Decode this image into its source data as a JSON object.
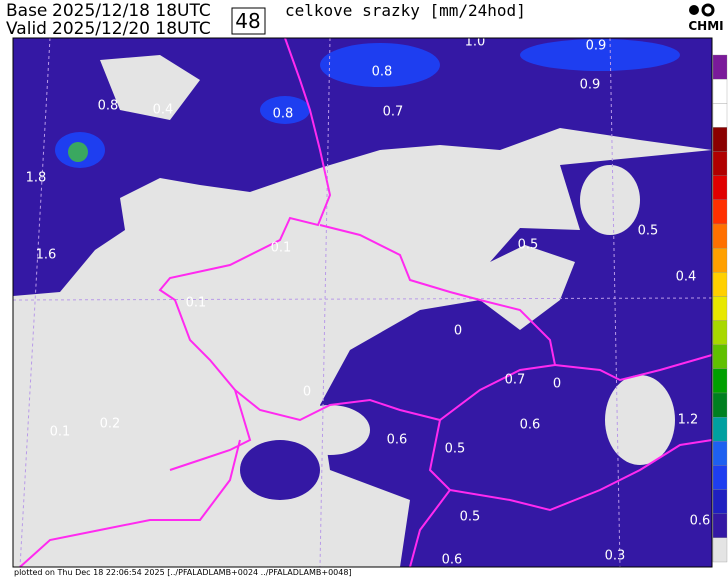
{
  "header": {
    "base_label": "Base",
    "base_time": "2025/12/18 18UTC",
    "valid_label": "Valid",
    "valid_time": "2025/12/20 18UTC",
    "lead_hours": "48",
    "title": "celkove srazky [mm/24hod]",
    "logo": "CHMI"
  },
  "map_labels": [
    "1.0",
    "0.9",
    "0.8",
    "0.9",
    "0.8",
    "0.4",
    "0.8",
    "0.7",
    "1.8",
    "0.1",
    "0.5",
    "0.5",
    "1.6",
    "0.4",
    "0.1",
    "0",
    "0.7",
    "0",
    "0",
    "0.2",
    "0.1",
    "0.6",
    "0.5",
    "0.6",
    "1.2",
    "0.5",
    "0.6",
    "0.6",
    "0.3"
  ],
  "footer": "plotted on Thu Dec 18 22:06:54 2025 [../PFALADLAMB+0024 ../PFALADLAMB+0048]"
}
